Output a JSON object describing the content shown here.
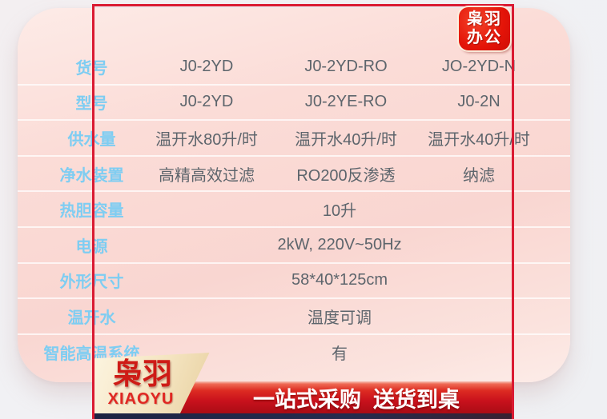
{
  "brand_badge": {
    "line1": "枭羽",
    "line2": "办公"
  },
  "logo": {
    "chinese": "枭羽",
    "latin": "XIAOYU"
  },
  "banner": {
    "text": "一站式采购  送货到桌"
  },
  "table": {
    "rows": [
      {
        "label": "货号",
        "merged": false,
        "values": [
          "J0-2YD",
          "J0-2YD-RO",
          "JO-2YD-N"
        ]
      },
      {
        "label": "型号",
        "merged": false,
        "values": [
          "J0-2YD",
          "J0-2YE-RO",
          "J0-2N"
        ]
      },
      {
        "label": "供水量",
        "merged": false,
        "values": [
          "温开水80升/时",
          "温开水40升/时",
          "温开水40升/时"
        ]
      },
      {
        "label": "净水装置",
        "merged": false,
        "values": [
          "高精高效过滤",
          "RO200反渗透",
          "纳滤"
        ]
      },
      {
        "label": "热胆容量",
        "merged": true,
        "values": [
          "10升"
        ]
      },
      {
        "label": "电源",
        "merged": true,
        "values": [
          "2kW, 220V~50Hz"
        ]
      },
      {
        "label": "外形尺寸",
        "merged": true,
        "values": [
          "58*40*125cm"
        ]
      },
      {
        "label": "温开水",
        "merged": true,
        "values": [
          "温度可调"
        ]
      },
      {
        "label": "智能高温系统",
        "merged": true,
        "values": [
          "有"
        ]
      }
    ]
  },
  "colors": {
    "accent_red": "#da1a32",
    "label_blue": "#7ecdf2",
    "value_gray": "#5d656c",
    "card_pink": "#fbdcd7",
    "banner_red": "#c8111c",
    "badge_cream": "#f4e4c0",
    "strip_navy": "#1d2342"
  }
}
